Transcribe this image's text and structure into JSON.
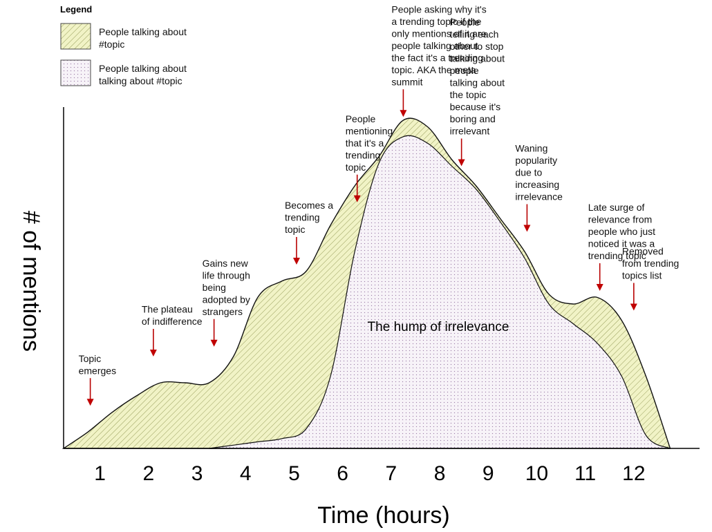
{
  "chart_data": {
    "type": "area",
    "title": "",
    "xlabel": "Time (hours)",
    "ylabel": "# of mentions",
    "x_ticks": [
      "1",
      "2",
      "3",
      "4",
      "5",
      "6",
      "7",
      "8",
      "9",
      "10",
      "11",
      "12"
    ],
    "xlim": [
      0,
      12.8
    ],
    "ylim": [
      0,
      100
    ],
    "center_label": "The hump of irrelevance",
    "legend": {
      "title": "Legend",
      "placement": "top-left",
      "items": [
        {
          "label": "People talking about #topic",
          "lines": [
            "People talking about",
            "#topic"
          ],
          "pattern": "hatch"
        },
        {
          "label": "People talking about talking about #topic",
          "lines": [
            "People talking about",
            "talking about #topic"
          ],
          "pattern": "dots"
        }
      ]
    },
    "series": [
      {
        "name": "People talking about #topic",
        "color": "#f1f3c6",
        "x": [
          0,
          0.5,
          1.0,
          1.5,
          2.0,
          2.5,
          3.0,
          3.5,
          4.0,
          4.5,
          5.0,
          5.5,
          6.0,
          6.5,
          7.0,
          7.5,
          8.0,
          8.5,
          9.0,
          9.5,
          10.0,
          10.5,
          11.0,
          11.5,
          12.0,
          12.5
        ],
        "values": [
          0,
          5,
          11,
          16,
          20,
          20,
          20,
          28,
          46,
          51,
          54,
          68,
          80,
          89,
          100,
          98,
          88,
          80,
          70,
          60,
          47,
          44,
          46,
          39,
          22,
          0
        ]
      },
      {
        "name": "People talking about talking about #topic",
        "color": "#f3eef4",
        "x": [
          3.0,
          3.5,
          4.0,
          4.5,
          5.0,
          5.5,
          6.0,
          6.5,
          7.0,
          7.5,
          8.0,
          8.5,
          9.0,
          9.5,
          10.0,
          10.5,
          11.0,
          11.5,
          12.0,
          12.5
        ],
        "values": [
          0,
          1,
          2,
          3,
          6,
          22,
          60,
          87,
          95,
          93,
          86,
          79,
          69,
          58,
          44,
          38,
          32,
          22,
          4,
          0
        ]
      }
    ],
    "annotations": [
      {
        "x": 0.55,
        "y_top": 13,
        "text": [
          "Topic",
          "emerges"
        ]
      },
      {
        "x": 1.85,
        "y_top": 28,
        "text": [
          "The plateau",
          "of indifference"
        ]
      },
      {
        "x": 3.1,
        "y_top": 31,
        "text": [
          "Gains new",
          "life through",
          "being",
          "adopted by",
          "strangers"
        ]
      },
      {
        "x": 4.8,
        "y_top": 56,
        "text": [
          "Becomes a",
          "trending",
          "topic"
        ]
      },
      {
        "x": 6.05,
        "y_top": 75,
        "text": [
          "People",
          "mentioning",
          "that it's a",
          "trending",
          "topic"
        ]
      },
      {
        "x": 7.0,
        "y_top": 101,
        "text": [
          "People asking why it's",
          "a trending topic if the",
          "only mentions of it are",
          "people talking about",
          "the fact it's a trending",
          "topic. AKA the meta",
          "summit"
        ]
      },
      {
        "x": 8.2,
        "y_top": 86,
        "text": [
          "People",
          "telling each",
          "other to stop",
          "talking about",
          "people",
          "talking about",
          "the topic",
          "because it's",
          "boring and",
          "irrelevant"
        ]
      },
      {
        "x": 9.55,
        "y_top": 66,
        "text": [
          "Waning",
          "popularity",
          "due to",
          "increasing",
          "irrelevance"
        ]
      },
      {
        "x": 11.05,
        "y_top": 48,
        "text": [
          "Late surge of",
          "relevance from",
          "people who just",
          "noticed it was a",
          "trending topic"
        ]
      },
      {
        "x": 11.75,
        "y_top": 42,
        "text": [
          "Removed",
          "from trending",
          "topics list"
        ]
      }
    ]
  }
}
